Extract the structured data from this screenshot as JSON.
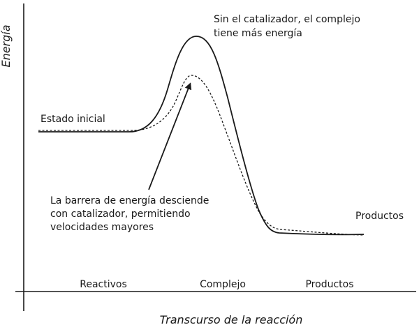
{
  "axes": {
    "y_label": "Energía",
    "x_label": "Transcurso de la reacción"
  },
  "regions": [
    "Reactivos",
    "Complejo",
    "Productos"
  ],
  "annotations": {
    "initial_state": "Estado inicial",
    "uncatalyzed": [
      "Sin el catalizador, el complejo",
      "tiene más energía"
    ],
    "catalyzed": [
      "La barrera de energía desciende",
      "con catalizador, permitiendo",
      "velocidades mayores"
    ],
    "products": "Productos"
  },
  "curves": [
    {
      "name": "uncatalyzed",
      "style": "solid"
    },
    {
      "name": "catalyzed",
      "style": "dashed"
    }
  ],
  "colors": {
    "line": "#1a1a1a",
    "background": "#ffffff"
  }
}
